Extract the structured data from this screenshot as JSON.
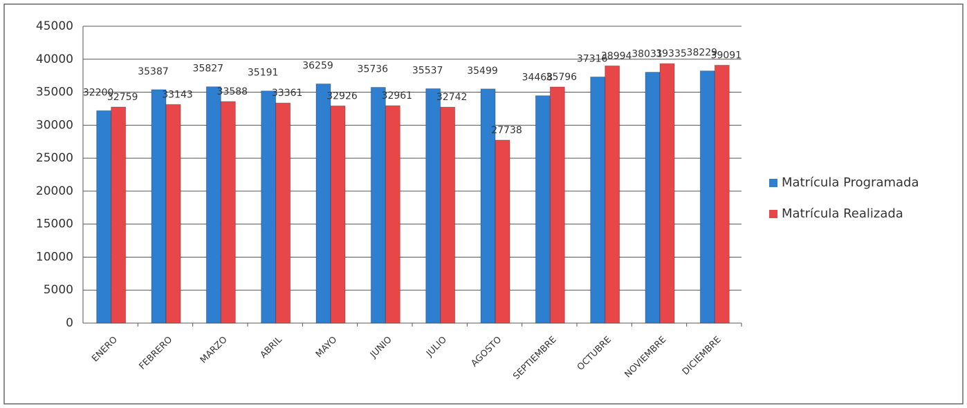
{
  "chart_data": {
    "type": "bar",
    "categories": [
      "ENERO",
      "FEBRERO",
      "MARZO",
      "ABRIL",
      "MAYO",
      "JUNIO",
      "JULIO",
      "AGOSTO",
      "SEPTIEMBRE",
      "OCTUBRE",
      "NOVIEMBRE",
      "DICIEMBRE"
    ],
    "series": [
      {
        "name": "Matrícula Programada",
        "color": "#2e7fd0",
        "values": [
          32200,
          35387,
          35827,
          35191,
          36259,
          35736,
          35537,
          35499,
          34468,
          37316,
          38031,
          38229
        ]
      },
      {
        "name": "Matrícula Realizada",
        "color": "#e8474a",
        "values": [
          32759,
          33143,
          33588,
          33361,
          32926,
          32961,
          32742,
          27738,
          35796,
          38994,
          39335,
          39091
        ]
      }
    ],
    "ylim": [
      0,
      45000
    ],
    "yticks": [
      0,
      5000,
      10000,
      15000,
      20000,
      25000,
      30000,
      35000,
      40000,
      45000
    ],
    "grid": true,
    "legend": "right"
  }
}
